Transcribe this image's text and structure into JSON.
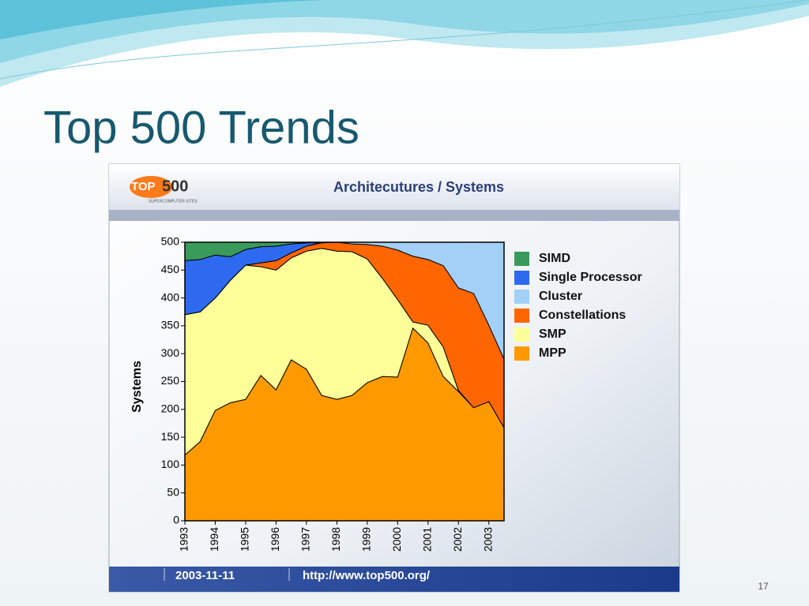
{
  "slide": {
    "title": "Top 500 Trends",
    "page_number": "17"
  },
  "chart_data": {
    "type": "stacked_area",
    "header": "Architecutures / Systems",
    "logo_top": "TOP",
    "logo_num": "500",
    "logo_subtitle": "SUPERCOMPUTER SITES",
    "footer_date": "2003-11-11",
    "footer_url": "http://www.top500.org/",
    "ylabel": "Systems",
    "x": [
      1993,
      1993.5,
      1994,
      1994.5,
      1995,
      1995.5,
      1996,
      1996.5,
      1997,
      1997.5,
      1998,
      1998.5,
      1999,
      1999.5,
      2000,
      2000.5,
      2001,
      2001.5,
      2002,
      2002.5,
      2003,
      2003.5
    ],
    "xlim": [
      1993,
      2003.5
    ],
    "xticks": [
      1993,
      1994,
      1995,
      1996,
      1997,
      1998,
      1999,
      2000,
      2001,
      2002,
      2003
    ],
    "ylim": [
      0,
      500
    ],
    "yticks": [
      0,
      50,
      100,
      150,
      200,
      250,
      300,
      350,
      400,
      450,
      500
    ],
    "series": [
      {
        "name": "SIMD",
        "color": "#3a9a5c",
        "values": [
          33,
          31,
          23,
          26,
          13,
          8,
          7,
          3,
          1,
          0,
          0,
          0,
          0,
          0,
          0,
          0,
          0,
          0,
          0,
          0,
          0,
          0
        ]
      },
      {
        "name": "Single Processor",
        "color": "#2e6af0",
        "values": [
          97,
          94,
          77,
          42,
          28,
          29,
          26,
          16,
          6,
          0,
          0,
          0,
          0,
          0,
          0,
          0,
          0,
          0,
          0,
          0,
          0,
          0
        ]
      },
      {
        "name": "Cluster",
        "color": "#a3d0f7",
        "values": [
          0,
          0,
          0,
          0,
          0,
          0,
          0,
          0,
          0,
          1,
          0,
          3,
          4,
          7,
          14,
          25,
          31,
          42,
          82,
          92,
          149,
          210
        ]
      },
      {
        "name": "Constellations",
        "color": "#ff6600",
        "values": [
          0,
          0,
          0,
          0,
          0,
          7,
          17,
          9,
          9,
          10,
          16,
          14,
          26,
          58,
          89,
          118,
          118,
          146,
          184,
          205,
          137,
          123
        ]
      },
      {
        "name": "SMP",
        "color": "#ffff99",
        "values": [
          252,
          233,
          202,
          220,
          241,
          195,
          215,
          183,
          212,
          264,
          266,
          258,
          222,
          176,
          139,
          11,
          32,
          53,
          2,
          0,
          0,
          0
        ]
      },
      {
        "name": "MPP",
        "color": "#ff9900",
        "values": [
          118,
          142,
          198,
          212,
          218,
          261,
          235,
          289,
          272,
          225,
          218,
          225,
          248,
          259,
          258,
          346,
          319,
          259,
          232,
          203,
          214,
          167
        ]
      }
    ]
  }
}
